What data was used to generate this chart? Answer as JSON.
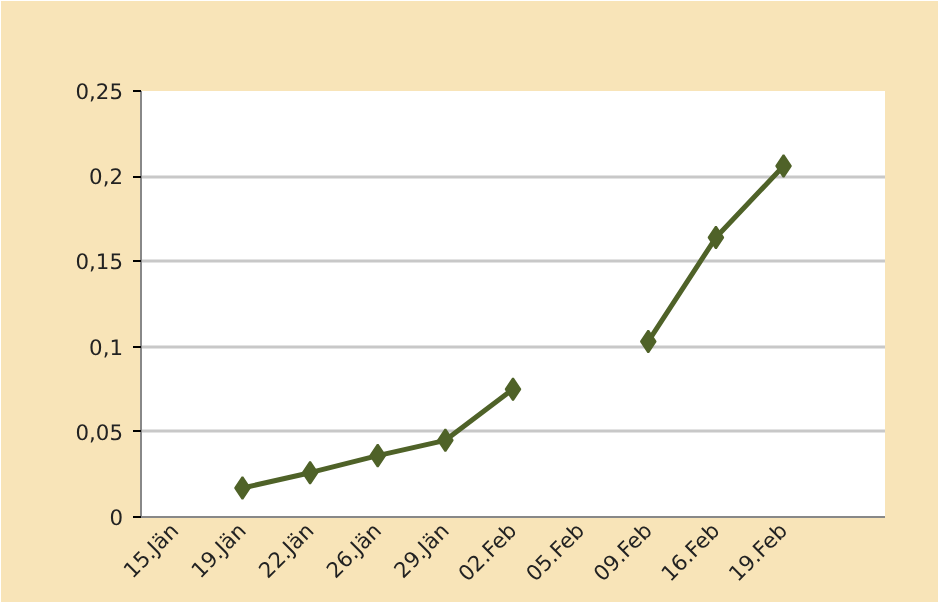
{
  "chart_data": {
    "type": "line",
    "categories": [
      "15.Jän",
      "19.Jän",
      "22.Jän",
      "26.Jän",
      "29.Jän",
      "02.Feb",
      "05.Feb",
      "09.Feb",
      "16.Feb",
      "19.Feb",
      null
    ],
    "series": [
      {
        "color": "#4f6228",
        "values": [
          null,
          0.017,
          0.026,
          0.036,
          0.045,
          0.075,
          null,
          0.103,
          0.164,
          0.206,
          null
        ]
      }
    ],
    "ylim": [
      0,
      0.25
    ],
    "yticks": [
      {
        "value": 0,
        "label": "0"
      },
      {
        "value": 0.05,
        "label": "0,05"
      },
      {
        "value": 0.1,
        "label": "0,1"
      },
      {
        "value": 0.15,
        "label": "0,15"
      },
      {
        "value": 0.2,
        "label": "0,2"
      },
      {
        "value": 0.25,
        "label": "0,25"
      }
    ],
    "grid": "y",
    "marker": "diamond",
    "line_style": "solid"
  }
}
